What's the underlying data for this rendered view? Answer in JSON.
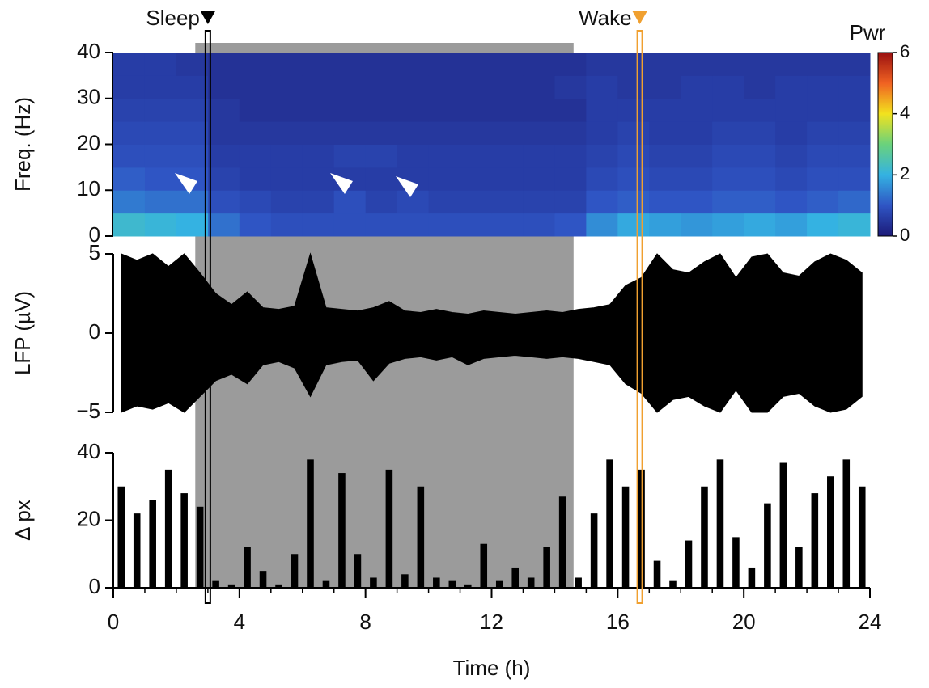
{
  "chart_data": [
    {
      "type": "heatmap",
      "ylabel": "Freq. (Hz)",
      "ylim": [
        0,
        40
      ],
      "yticks": [
        0,
        10,
        20,
        30,
        40
      ],
      "xlim": [
        0,
        24
      ],
      "x": [
        0.5,
        1.5,
        2.5,
        3.5,
        4.5,
        5.5,
        6.5,
        7.5,
        8.5,
        9.5,
        10.5,
        11.5,
        12.5,
        13.5,
        14.5,
        15.5,
        16.5,
        17.5,
        18.5,
        19.5,
        20.5,
        21.5,
        22.5,
        23.5
      ],
      "y": [
        2.5,
        7.5,
        12.5,
        17.5,
        22.5,
        27.5,
        32.5,
        37.5
      ],
      "z": [
        [
          2.2,
          2.1,
          2.0,
          1.3,
          1.0,
          0.9,
          0.9,
          0.9,
          0.9,
          0.9,
          0.9,
          0.9,
          0.9,
          0.9,
          1.0,
          1.6,
          1.9,
          1.8,
          1.7,
          1.8,
          1.9,
          1.8,
          2.0,
          2.1
        ],
        [
          1.4,
          1.3,
          1.3,
          0.9,
          0.8,
          0.7,
          0.7,
          0.9,
          0.7,
          0.8,
          0.7,
          0.7,
          0.7,
          0.7,
          0.7,
          1.0,
          1.1,
          1.0,
          1.0,
          1.1,
          1.1,
          1.0,
          1.1,
          1.2
        ],
        [
          1.1,
          1.0,
          1.0,
          0.7,
          0.6,
          0.6,
          0.6,
          0.6,
          0.6,
          0.6,
          0.6,
          0.6,
          0.6,
          0.6,
          0.6,
          0.8,
          0.9,
          0.8,
          0.8,
          0.9,
          0.9,
          0.8,
          0.9,
          0.9
        ],
        [
          0.9,
          0.9,
          0.9,
          0.6,
          0.6,
          0.6,
          0.6,
          0.7,
          0.7,
          0.6,
          0.6,
          0.6,
          0.6,
          0.6,
          0.6,
          0.7,
          0.8,
          0.7,
          0.7,
          0.8,
          0.8,
          0.7,
          0.8,
          0.8
        ],
        [
          0.8,
          0.8,
          0.8,
          0.5,
          0.5,
          0.5,
          0.5,
          0.5,
          0.5,
          0.5,
          0.5,
          0.5,
          0.5,
          0.5,
          0.5,
          0.6,
          0.7,
          0.6,
          0.6,
          0.7,
          0.7,
          0.6,
          0.7,
          0.7
        ],
        [
          0.7,
          0.7,
          0.7,
          0.5,
          0.4,
          0.4,
          0.4,
          0.4,
          0.4,
          0.4,
          0.4,
          0.4,
          0.4,
          0.4,
          0.4,
          0.6,
          0.6,
          0.6,
          0.6,
          0.6,
          0.6,
          0.6,
          0.6,
          0.6
        ],
        [
          0.6,
          0.6,
          0.6,
          0.4,
          0.4,
          0.4,
          0.4,
          0.4,
          0.4,
          0.4,
          0.4,
          0.4,
          0.4,
          0.4,
          0.5,
          0.6,
          0.5,
          0.5,
          0.6,
          0.6,
          0.5,
          0.6,
          0.6,
          0.6
        ],
        [
          0.6,
          0.6,
          0.5,
          0.4,
          0.4,
          0.4,
          0.4,
          0.4,
          0.4,
          0.4,
          0.4,
          0.4,
          0.4,
          0.4,
          0.4,
          0.5,
          0.5,
          0.5,
          0.5,
          0.5,
          0.5,
          0.5,
          0.5,
          0.5
        ]
      ],
      "zlabel": "Pwr",
      "zlim": [
        0,
        6
      ],
      "zticks": [
        0,
        2,
        4,
        6
      ],
      "colormap": [
        "#1c1a78",
        "#2f55c4",
        "#34b2e2",
        "#6ad27c",
        "#f2e21e",
        "#f06222",
        "#9a1010"
      ],
      "shaded_interval": {
        "x": [
          2.6,
          14.6
        ],
        "color": "#9b9b9b"
      },
      "markers": [
        {
          "label": "Sleep",
          "x": 3,
          "color": "#000000"
        },
        {
          "label": "Wake",
          "x": 16.7,
          "color": "#f0a030"
        }
      ]
    },
    {
      "type": "band",
      "ylabel": "LFP (µV)",
      "ylim": [
        -5,
        5
      ],
      "yticks": [
        {
          "value": -5,
          "label": "−5"
        },
        0,
        5
      ],
      "xlim": [
        0,
        24
      ],
      "color": "#000000",
      "x": [
        0.25,
        0.75,
        1.25,
        1.75,
        2.25,
        2.75,
        3.25,
        3.75,
        4.25,
        4.75,
        5.25,
        5.75,
        6.25,
        6.75,
        7.25,
        7.75,
        8.25,
        8.75,
        9.25,
        9.75,
        10.25,
        10.75,
        11.25,
        11.75,
        12.25,
        12.75,
        13.25,
        13.75,
        14.25,
        14.75,
        15.25,
        15.75,
        16.25,
        16.75,
        17.25,
        17.75,
        18.25,
        18.75,
        19.25,
        19.75,
        20.25,
        20.75,
        21.25,
        21.75,
        22.25,
        22.75,
        23.25,
        23.75
      ],
      "upper": [
        5,
        4.6,
        5,
        4.2,
        5,
        3.8,
        2.5,
        1.8,
        2.6,
        1.6,
        1.5,
        1.7,
        5,
        1.6,
        1.5,
        1.4,
        1.6,
        2.0,
        1.4,
        1.3,
        1.5,
        1.3,
        1.2,
        1.4,
        1.3,
        1.2,
        1.3,
        1.4,
        1.3,
        1.5,
        1.6,
        1.8,
        3.0,
        3.5,
        5,
        4.0,
        3.8,
        4.5,
        5,
        3.5,
        4.8,
        5,
        3.8,
        3.6,
        4.5,
        5,
        4.6,
        3.8
      ],
      "lower": [
        -5,
        -4.6,
        -4.8,
        -4.4,
        -5,
        -4.0,
        -3.0,
        -2.6,
        -3.2,
        -2.0,
        -1.8,
        -2.2,
        -4.0,
        -2.0,
        -1.8,
        -1.7,
        -3.0,
        -1.9,
        -1.6,
        -1.5,
        -1.7,
        -1.5,
        -2.0,
        -1.6,
        -1.5,
        -1.4,
        -1.5,
        -1.6,
        -1.5,
        -1.6,
        -1.8,
        -2.0,
        -3.2,
        -3.8,
        -5,
        -4.2,
        -4.0,
        -4.6,
        -5,
        -3.6,
        -5,
        -5,
        -4.0,
        -3.8,
        -4.6,
        -5,
        -4.8,
        -4.0
      ]
    },
    {
      "type": "bar",
      "ylabel": "Δ px",
      "ylim": [
        0,
        40
      ],
      "yticks": [
        0,
        20,
        40
      ],
      "color": "#000000",
      "xlabel": "Time (h)",
      "xlim": [
        0,
        24
      ],
      "xticks": [
        0,
        4,
        8,
        12,
        16,
        20,
        24
      ],
      "xminorticks": [
        0,
        1,
        2,
        3,
        4,
        5,
        6,
        7,
        8,
        9,
        10,
        11,
        12,
        13,
        14,
        15,
        16,
        17,
        18,
        19,
        20,
        21,
        22,
        23,
        24
      ],
      "x": [
        0.25,
        0.75,
        1.25,
        1.75,
        2.25,
        2.75,
        3.25,
        3.75,
        4.25,
        4.75,
        5.25,
        5.75,
        6.25,
        6.75,
        7.25,
        7.75,
        8.25,
        8.75,
        9.25,
        9.75,
        10.25,
        10.75,
        11.25,
        11.75,
        12.25,
        12.75,
        13.25,
        13.75,
        14.25,
        14.75,
        15.25,
        15.75,
        16.25,
        16.75,
        17.25,
        17.75,
        18.25,
        18.75,
        19.25,
        19.75,
        20.25,
        20.75,
        21.25,
        21.75,
        22.25,
        22.75,
        23.25,
        23.75
      ],
      "values": [
        30,
        22,
        26,
        35,
        28,
        24,
        2,
        1,
        12,
        5,
        1,
        10,
        38,
        2,
        34,
        10,
        3,
        35,
        4,
        30,
        3,
        2,
        1,
        13,
        2,
        6,
        3,
        12,
        27,
        3,
        22,
        38,
        30,
        35,
        8,
        2,
        14,
        30,
        38,
        15,
        6,
        25,
        37,
        12,
        28,
        33,
        38,
        30
      ]
    }
  ]
}
